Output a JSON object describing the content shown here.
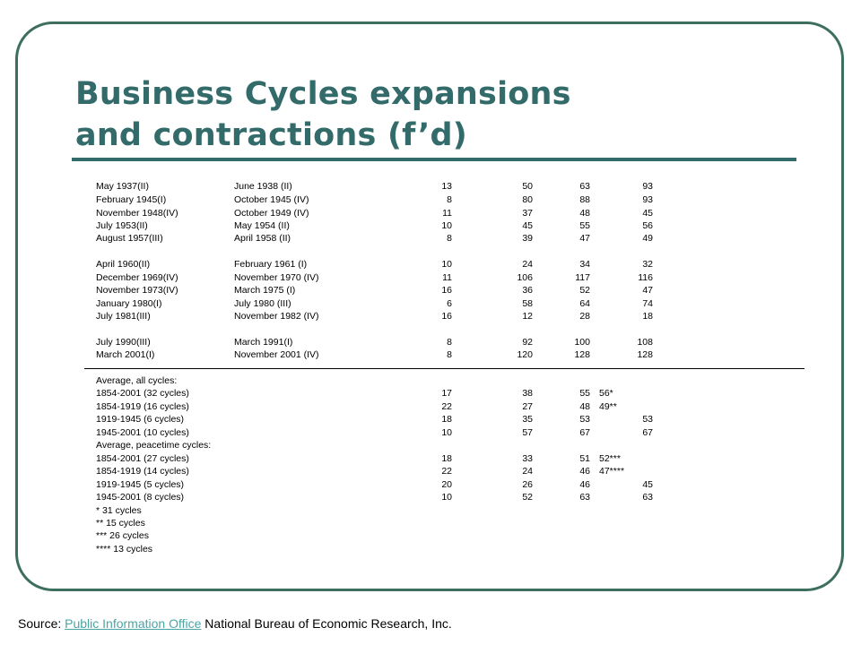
{
  "slide": {
    "title_line1": "Business Cycles expansions",
    "title_line2": "and contractions (f’d)"
  },
  "cycles": [
    {
      "peak": "May 1937(II)",
      "trough": "June 1938 (II)",
      "contraction": "13",
      "expansion": "50",
      "cycle_trough": "63",
      "cycle_peak": "93"
    },
    {
      "peak": "February 1945(I)",
      "trough": "October 1945 (IV)",
      "contraction": "8",
      "expansion": "80",
      "cycle_trough": "88",
      "cycle_peak": "93"
    },
    {
      "peak": "November 1948(IV)",
      "trough": "October 1949 (IV)",
      "contraction": "11",
      "expansion": "37",
      "cycle_trough": "48",
      "cycle_peak": "45"
    },
    {
      "peak": "July 1953(II)",
      "trough": "May 1954 (II)",
      "contraction": "10",
      "expansion": "45",
      "cycle_trough": "55",
      "cycle_peak": "56"
    },
    {
      "peak": "August 1957(III)",
      "trough": "April 1958 (II)",
      "contraction": "8",
      "expansion": "39",
      "cycle_trough": "47",
      "cycle_peak": "49"
    },
    {
      "peak": "April 1960(II)",
      "trough": "February 1961 (I)",
      "contraction": "10",
      "expansion": "24",
      "cycle_trough": "34",
      "cycle_peak": "32"
    },
    {
      "peak": "December 1969(IV)",
      "trough": "November 1970 (IV)",
      "contraction": "11",
      "expansion": "106",
      "cycle_trough": "117",
      "cycle_peak": "116"
    },
    {
      "peak": "November 1973(IV)",
      "trough": "March 1975 (I)",
      "contraction": "16",
      "expansion": "36",
      "cycle_trough": "52",
      "cycle_peak": "47"
    },
    {
      "peak": "January 1980(I)",
      "trough": "July 1980 (III)",
      "contraction": "6",
      "expansion": "58",
      "cycle_trough": "64",
      "cycle_peak": "74"
    },
    {
      "peak": "July 1981(III)",
      "trough": "November 1982 (IV)",
      "contraction": "16",
      "expansion": "12",
      "cycle_trough": "28",
      "cycle_peak": "18"
    },
    {
      "peak": "July 1990(III)",
      "trough": "March 1991(I)",
      "contraction": "8",
      "expansion": "92",
      "cycle_trough": "100",
      "cycle_peak": "108"
    },
    {
      "peak": "March 2001(I)",
      "trough": "November 2001 (IV)",
      "contraction": "8",
      "expansion": "120",
      "cycle_trough": "128",
      "cycle_peak": "128"
    }
  ],
  "averages_all": {
    "heading": "Average, all cycles:",
    "rows": [
      {
        "label": "1854-2001 (32 cycles)",
        "contraction": "17",
        "expansion": "38",
        "cycle_trough": "55",
        "note": "56*"
      },
      {
        "label": "1854-1919 (16 cycles)",
        "contraction": "22",
        "expansion": "27",
        "cycle_trough": "48",
        "note": "49**"
      },
      {
        "label": "1919-1945 (6 cycles)",
        "contraction": "18",
        "expansion": "35",
        "cycle_trough": "53",
        "cycle_peak": "53"
      },
      {
        "label": "1945-2001 (10 cycles)",
        "contraction": "10",
        "expansion": "57",
        "cycle_trough": "67",
        "cycle_peak": "67"
      }
    ]
  },
  "averages_peacetime": {
    "heading": "Average, peacetime cycles:",
    "rows": [
      {
        "label": "1854-2001 (27 cycles)",
        "contraction": "18",
        "expansion": "33",
        "cycle_trough": "51",
        "note": "52***"
      },
      {
        "label": "1854-1919 (14 cycles)",
        "contraction": "22",
        "expansion": "24",
        "cycle_trough": "46",
        "note": "47****"
      },
      {
        "label": "1919-1945 (5 cycles)",
        "contraction": "20",
        "expansion": "26",
        "cycle_trough": "46",
        "cycle_peak": "45"
      },
      {
        "label": "1945-2001 (8 cycles)",
        "contraction": "10",
        "expansion": "52",
        "cycle_trough": "63",
        "cycle_peak": "63"
      }
    ]
  },
  "footnotes": [
    "* 31 cycles",
    "** 15 cycles",
    "*** 26 cycles",
    "**** 13 cycles"
  ],
  "source": {
    "prefix": "Source: ",
    "link_text": "Public Information Office",
    "suffix": " National Bureau of Economic Research, Inc."
  },
  "colors": {
    "title": "#336b6a",
    "frame": "#3d6e5f",
    "link": "#4aa6a6"
  }
}
